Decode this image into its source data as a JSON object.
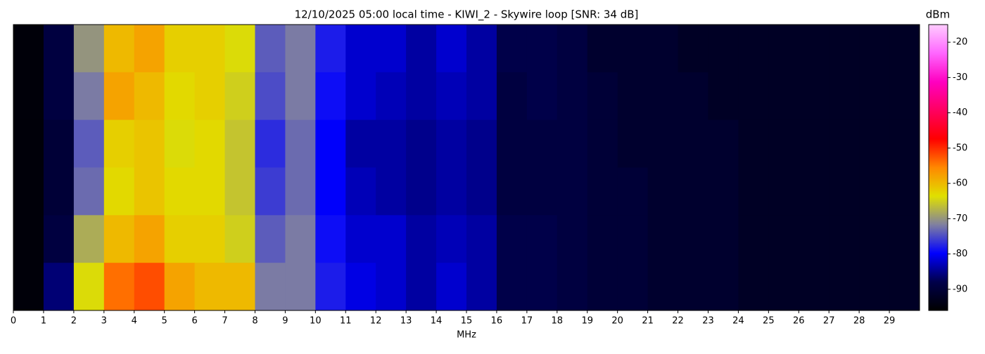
{
  "chart_data": {
    "type": "heatmap",
    "title": "12/10/2025 05:00 local time - KIWI_2 - Skywire loop [SNR: 34 dB]",
    "x_label": "MHz",
    "colorbar_label": "dBm",
    "xlim": [
      0,
      30
    ],
    "xticks": [
      0,
      1,
      2,
      3,
      4,
      5,
      6,
      7,
      8,
      9,
      10,
      11,
      12,
      13,
      14,
      15,
      16,
      17,
      18,
      19,
      20,
      21,
      22,
      23,
      24,
      25,
      26,
      27,
      28,
      29
    ],
    "clim": [
      -96,
      -15
    ],
    "cticks": [
      -20,
      -30,
      -40,
      -50,
      -60,
      -70,
      -80,
      -90
    ],
    "colormap": [
      "#000000",
      "#00004a",
      "#0000ff",
      "#8080a0",
      "#e0e000",
      "#ff8800",
      "#ff0000",
      "#ff0060",
      "#ff00c0",
      "#ff66ff",
      "#ffccff"
    ],
    "z": [
      [
        -95,
        -89,
        -70,
        -60,
        -58,
        -62,
        -62,
        -64,
        -74,
        -72,
        -78,
        -82,
        -82,
        -84,
        -82,
        -84,
        -88,
        -88,
        -89,
        -91,
        -91,
        -91,
        -92,
        -92,
        -92,
        -92,
        -92,
        -92,
        -92,
        -92
      ],
      [
        -95,
        -89,
        -72,
        -58,
        -60,
        -63,
        -62,
        -65,
        -75,
        -72,
        -79,
        -82,
        -83,
        -84,
        -83,
        -84,
        -89,
        -88,
        -89,
        -90,
        -91,
        -91,
        -91,
        -92,
        -92,
        -92,
        -92,
        -92,
        -92,
        -92
      ],
      [
        -95,
        -90,
        -74,
        -62,
        -61,
        -64,
        -63,
        -66,
        -77,
        -73,
        -80,
        -84,
        -84,
        -85,
        -84,
        -85,
        -89,
        -89,
        -89,
        -90,
        -91,
        -91,
        -91,
        -91,
        -92,
        -92,
        -92,
        -92,
        -92,
        -92
      ],
      [
        -95,
        -90,
        -73,
        -63,
        -61,
        -63,
        -63,
        -66,
        -76,
        -73,
        -80,
        -83,
        -84,
        -85,
        -84,
        -85,
        -89,
        -89,
        -89,
        -90,
        -90,
        -91,
        -91,
        -91,
        -92,
        -92,
        -92,
        -92,
        -92,
        -92
      ],
      [
        -95,
        -89,
        -68,
        -60,
        -58,
        -62,
        -62,
        -65,
        -74,
        -72,
        -79,
        -82,
        -82,
        -84,
        -83,
        -84,
        -88,
        -88,
        -89,
        -90,
        -90,
        -91,
        -91,
        -91,
        -92,
        -92,
        -92,
        -92,
        -92,
        -92
      ],
      [
        -95,
        -86,
        -64,
        -54,
        -52,
        -58,
        -60,
        -60,
        -72,
        -72,
        -78,
        -81,
        -82,
        -84,
        -82,
        -84,
        -88,
        -88,
        -89,
        -90,
        -90,
        -91,
        -91,
        -91,
        -92,
        -92,
        -92,
        -92,
        -92,
        -92
      ]
    ]
  }
}
